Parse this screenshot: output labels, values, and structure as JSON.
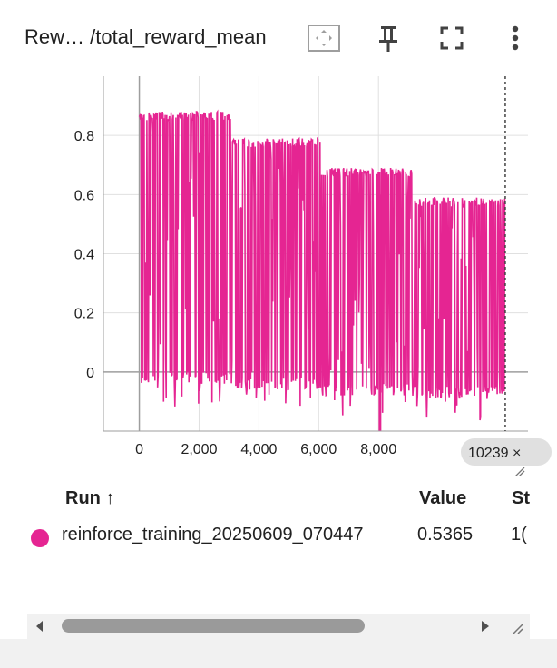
{
  "header": {
    "title": "Rew… /total_reward_mean",
    "icons": [
      "fit-domain-icon",
      "pin-icon",
      "fullscreen-icon",
      "more-vert-icon"
    ]
  },
  "chart_data": {
    "type": "line",
    "title": "",
    "xlabel": "",
    "ylabel": "",
    "x_ticks": [
      "0",
      "2,000",
      "4,000",
      "6,000",
      "8,000"
    ],
    "y_ticks": [
      "0",
      "0.2",
      "0.4",
      "0.6",
      "0.8"
    ],
    "xlim": [
      -1200,
      13000
    ],
    "ylim": [
      -0.2,
      1.0
    ],
    "grid": true,
    "hover_step_label": "10239",
    "series": [
      {
        "name": "reinforce_training_20250609_070447",
        "color": "#e52592",
        "segments": [
          {
            "x_start": 0,
            "x_end": 3100,
            "upper": 0.88,
            "lower": -0.04
          },
          {
            "x_start": 3100,
            "x_end": 6100,
            "upper": 0.79,
            "lower": -0.06
          },
          {
            "x_start": 6100,
            "x_end": 9200,
            "upper": 0.69,
            "lower": -0.08
          },
          {
            "x_start": 9200,
            "x_end": 12240,
            "upper": 0.59,
            "lower": -0.09
          }
        ],
        "x_max": 12240,
        "min_value": -0.2
      }
    ]
  },
  "table": {
    "headers": {
      "run": "Run ↑",
      "value": "Value",
      "step": "St"
    },
    "rows": [
      {
        "run": "reinforce_training_20250609_070447",
        "value": "0.5365",
        "step": "1("
      }
    ],
    "run_color": "#e52592"
  }
}
